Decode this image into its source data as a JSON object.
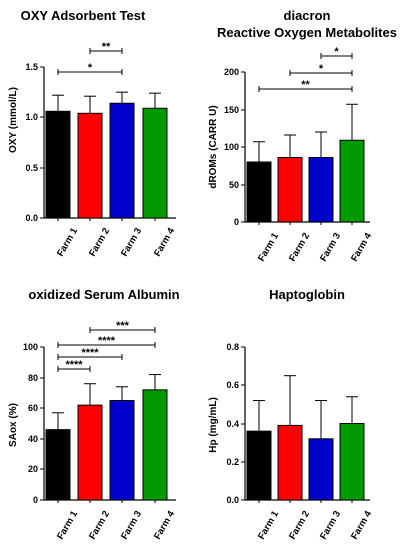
{
  "colors": {
    "farm1": "#000000",
    "farm2": "#ff0000",
    "farm3": "#0000cc",
    "farm4": "#009900"
  },
  "chart_data": [
    {
      "type": "bar",
      "title": "OXY Adsorbent Test",
      "subtitle": "",
      "ylabel": "OXY (mmol/L)",
      "categories": [
        "Farm 1",
        "Farm 2",
        "Farm 3",
        "Farm 4"
      ],
      "values": [
        1.06,
        1.04,
        1.14,
        1.09
      ],
      "errors": [
        0.16,
        0.17,
        0.11,
        0.15
      ],
      "ylim": [
        0,
        1.5
      ],
      "yticks": [
        "0.0",
        "0.5",
        "1.0",
        "1.5"
      ],
      "bar_colors": [
        "farm1",
        "farm2",
        "farm3",
        "farm4"
      ],
      "significance": [
        {
          "from": 1,
          "to": 2,
          "label": "**"
        },
        {
          "from": 0,
          "to": 2,
          "label": "*"
        }
      ]
    },
    {
      "type": "bar",
      "title": "diacron",
      "subtitle": "Reactive Oxygen Metabolites",
      "ylabel": "dROMs (CARR U)",
      "categories": [
        "Farm 1",
        "Farm 2",
        "Farm 3",
        "Farm 4"
      ],
      "values": [
        80,
        86,
        86,
        109
      ],
      "errors": [
        27,
        30,
        34,
        48
      ],
      "ylim": [
        0,
        200
      ],
      "yticks": [
        "0",
        "50",
        "100",
        "150",
        "200"
      ],
      "bar_colors": [
        "farm1",
        "farm2",
        "farm3",
        "farm4"
      ],
      "significance": [
        {
          "from": 2,
          "to": 3,
          "label": "*"
        },
        {
          "from": 1,
          "to": 3,
          "label": "*"
        },
        {
          "from": 0,
          "to": 3,
          "label": "**"
        }
      ]
    },
    {
      "type": "bar",
      "title": "oxidized Serum Albumin",
      "subtitle": "",
      "ylabel": "SAox (%)",
      "categories": [
        "Farm 1",
        "Farm 2",
        "Farm 3",
        "Farm 4"
      ],
      "values": [
        46,
        62,
        65,
        72
      ],
      "errors": [
        11,
        14,
        9,
        10
      ],
      "ylim": [
        0,
        100
      ],
      "yticks": [
        "0",
        "20",
        "40",
        "60",
        "80",
        "100"
      ],
      "bar_colors": [
        "farm1",
        "farm2",
        "farm3",
        "farm4"
      ],
      "significance": [
        {
          "from": 1,
          "to": 3,
          "label": "***"
        },
        {
          "from": 0,
          "to": 3,
          "label": "****"
        },
        {
          "from": 0,
          "to": 2,
          "label": "****"
        },
        {
          "from": 0,
          "to": 1,
          "label": "****"
        }
      ]
    },
    {
      "type": "bar",
      "title": "Haptoglobin",
      "subtitle": "",
      "ylabel": "Hp (mg/mL)",
      "categories": [
        "Farm 1",
        "Farm 2",
        "Farm 3",
        "Farm 4"
      ],
      "values": [
        0.36,
        0.39,
        0.32,
        0.4
      ],
      "errors": [
        0.16,
        0.26,
        0.2,
        0.14
      ],
      "ylim": [
        0,
        0.8
      ],
      "yticks": [
        "0.0",
        "0.2",
        "0.4",
        "0.6",
        "0.8"
      ],
      "bar_colors": [
        "farm1",
        "farm2",
        "farm3",
        "farm4"
      ],
      "significance": []
    }
  ]
}
